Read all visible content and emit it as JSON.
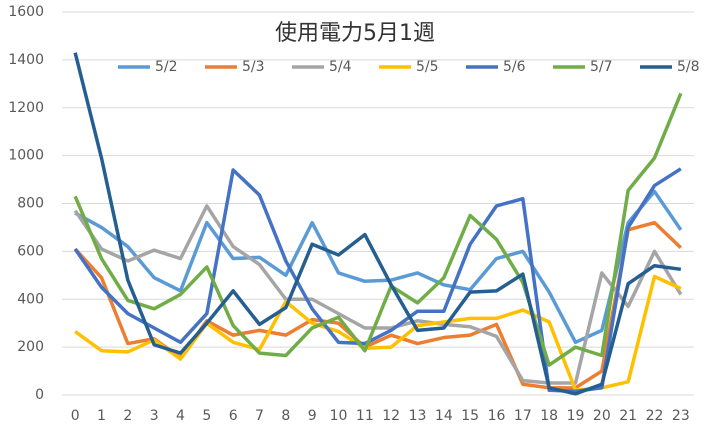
{
  "chart_data": {
    "type": "line",
    "title": "使用電力5月1週",
    "categories": [
      "0",
      "1",
      "2",
      "3",
      "4",
      "5",
      "6",
      "7",
      "8",
      "9",
      "10",
      "11",
      "12",
      "13",
      "14",
      "15",
      "16",
      "17",
      "18",
      "19",
      "20",
      "21",
      "22",
      "23"
    ],
    "ylim": [
      0,
      1600
    ],
    "yticks": [
      0,
      200,
      400,
      600,
      800,
      1000,
      1200,
      1400,
      1600
    ],
    "grid": true,
    "legend": "top",
    "series": [
      {
        "name": "5/2",
        "color": "#5b9bd5",
        "values": [
          760,
          700,
          620,
          490,
          435,
          720,
          570,
          575,
          500,
          720,
          510,
          475,
          480,
          510,
          460,
          440,
          570,
          600,
          430,
          220,
          270,
          720,
          850,
          690
        ]
      },
      {
        "name": "5/3",
        "color": "#ed7d31",
        "values": [
          610,
          490,
          215,
          235,
          155,
          310,
          250,
          270,
          250,
          315,
          300,
          200,
          250,
          215,
          240,
          250,
          295,
          45,
          30,
          30,
          100,
          690,
          720,
          615
        ]
      },
      {
        "name": "5/4",
        "color": "#a5a5a5",
        "values": [
          770,
          610,
          560,
          605,
          570,
          790,
          620,
          545,
          400,
          400,
          340,
          280,
          280,
          310,
          295,
          285,
          245,
          60,
          50,
          50,
          510,
          370,
          600,
          420
        ]
      },
      {
        "name": "5/5",
        "color": "#ffc000",
        "values": [
          265,
          185,
          180,
          230,
          150,
          300,
          220,
          190,
          390,
          300,
          265,
          195,
          200,
          290,
          305,
          320,
          320,
          355,
          305,
          20,
          30,
          55,
          495,
          445
        ]
      },
      {
        "name": "5/6",
        "color": "#4472c4",
        "values": [
          610,
          450,
          340,
          280,
          220,
          340,
          940,
          835,
          560,
          360,
          220,
          215,
          270,
          350,
          350,
          630,
          790,
          820,
          20,
          15,
          30,
          700,
          875,
          945
        ]
      },
      {
        "name": "5/7",
        "color": "#70ad47",
        "values": [
          830,
          570,
          395,
          360,
          420,
          535,
          290,
          175,
          165,
          280,
          325,
          185,
          455,
          385,
          490,
          750,
          650,
          470,
          125,
          200,
          165,
          855,
          990,
          1260
        ]
      },
      {
        "name": "5/8",
        "color": "#255e91",
        "values": [
          1430,
          990,
          480,
          210,
          175,
          300,
          435,
          295,
          365,
          630,
          585,
          670,
          460,
          270,
          280,
          430,
          435,
          505,
          30,
          5,
          45,
          465,
          540,
          525
        ]
      }
    ]
  }
}
